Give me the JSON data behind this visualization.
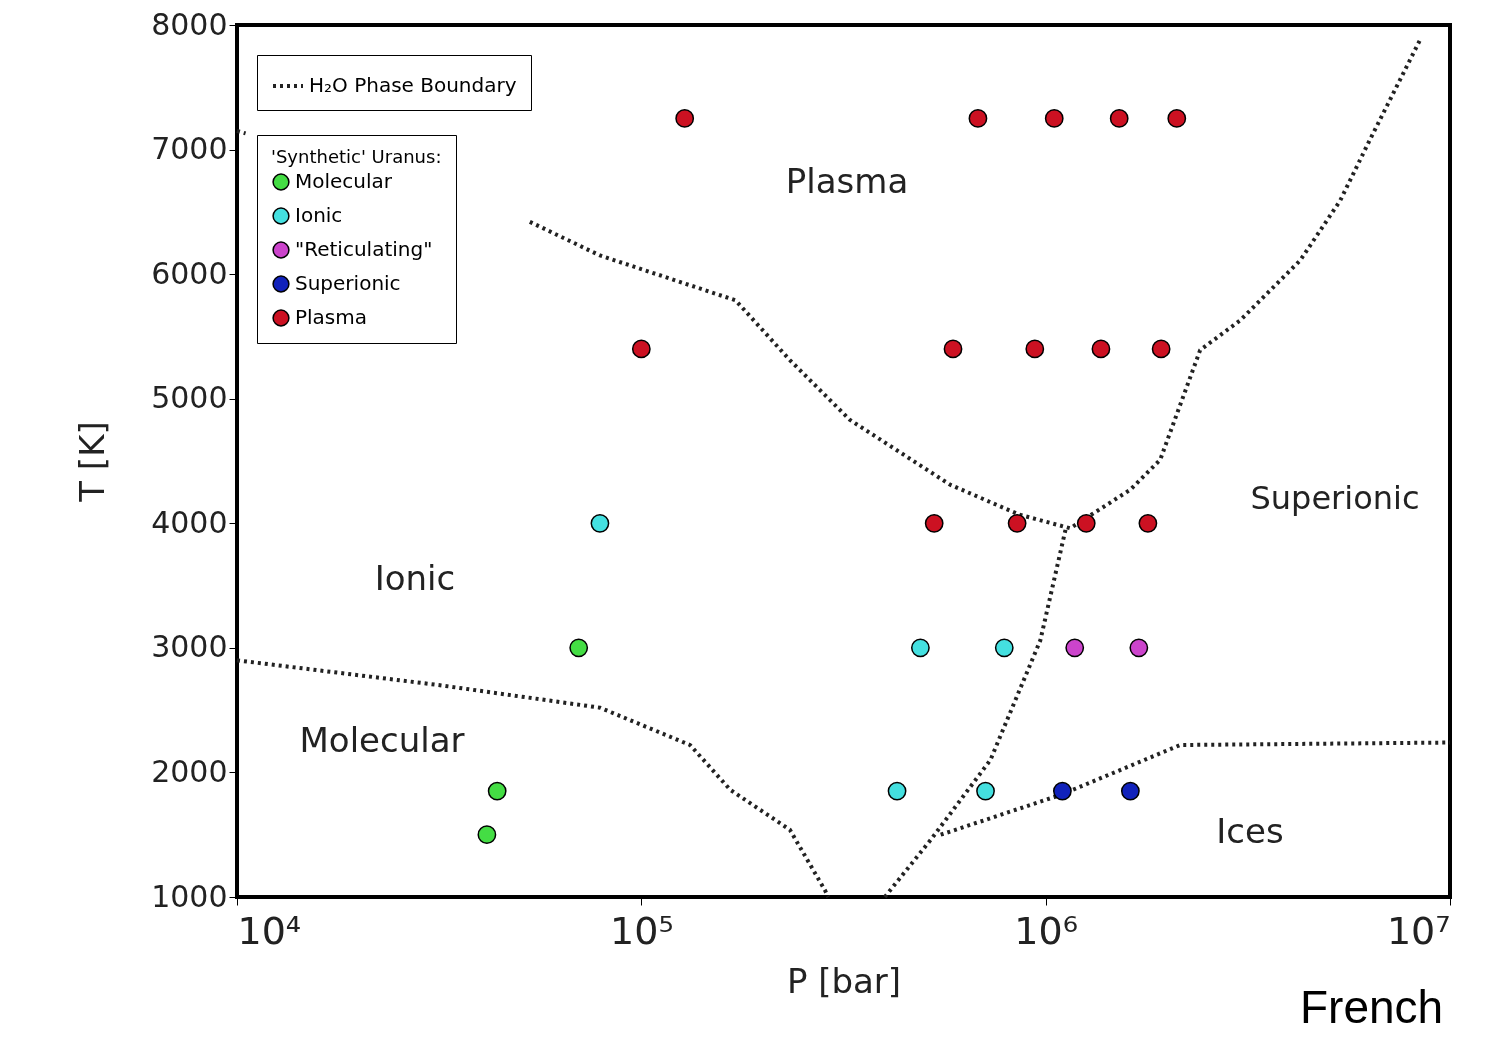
{
  "chart_data": {
    "type": "scatter",
    "xlabel": "P [bar]",
    "ylabel": "T [K]",
    "legend_title": "'Synthetic' Uranus:",
    "log": "x",
    "grid": false,
    "legend": "top left",
    "marker": "circle",
    "xlim": [
      10000,
      10000000
    ],
    "xticks": [
      {
        "value": 10000,
        "label": "10⁴"
      },
      {
        "value": 100000,
        "label": "10⁵"
      },
      {
        "value": 1000000,
        "label": "10⁶"
      },
      {
        "value": 10000000,
        "label": "10⁷"
      }
    ],
    "ylim": [
      1000,
      8000
    ],
    "yticks": [
      1000,
      2000,
      3000,
      4000,
      5000,
      6000,
      7000,
      8000
    ],
    "series": [
      {
        "name": "H₂O Phase Boundary",
        "type": "line",
        "line_style": "dotted",
        "marker": "none",
        "color": "#222222",
        "x": [
          10000,
          31800,
          79000,
          132000,
          166000,
          233000,
          285000,
          290000,
          null,
          10000,
          10500,
          null,
          53000,
          79000,
          171000,
          233000,
          328000,
          580000,
          860000,
          1150000,
          1620000,
          1920000,
          2410000,
          3030000,
          4260000,
          5350000,
          6340000,
          8430000,
          null,
          400000,
          520000,
          730000,
          970000,
          1120000,
          null,
          550000,
          1090000,
          2150000,
          10000000
        ],
        "values": [
          2900,
          2700,
          2520,
          2220,
          1860,
          1540,
          1050,
          1000,
          null,
          7150,
          7130,
          null,
          6420,
          6150,
          5790,
          5310,
          4830,
          4310,
          4070,
          3960,
          4270,
          4510,
          5390,
          5630,
          6110,
          6590,
          7080,
          7880,
          null,
          1000,
          1460,
          2100,
          3060,
          3950,
          null,
          1500,
          1820,
          2220,
          2240
        ]
      },
      {
        "name": "Molecular",
        "color": "#44dd44",
        "x": [
          44000,
          41500,
          70000
        ],
        "values": [
          1850,
          1500,
          3000
        ]
      },
      {
        "name": "Ionic",
        "color": "#44e0e0",
        "x": [
          429000,
          710000,
          490000,
          790000,
          79000
        ],
        "values": [
          1850,
          1850,
          3000,
          3000,
          4000
        ]
      },
      {
        "name": "\"Reticulating\"",
        "color": "#cc44cc",
        "x": [
          1180000,
          1700000
        ],
        "values": [
          3000,
          3000
        ]
      },
      {
        "name": "Superionic",
        "color": "#1122bb",
        "x": [
          1100000,
          1620000
        ],
        "values": [
          1850,
          1850
        ]
      },
      {
        "name": "Plasma",
        "color": "#cc1122",
        "x": [
          530000,
          850000,
          1260000,
          1790000,
          100000,
          590000,
          940000,
          1370000,
          1930000,
          128000,
          680000,
          1050000,
          1520000,
          2110000
        ],
        "values": [
          4000,
          4000,
          4000,
          4000,
          5400,
          5400,
          5400,
          5400,
          5400,
          7250,
          7250,
          7250,
          7250,
          7250
        ]
      }
    ],
    "annotations": [
      "Plasma",
      "Ionic",
      "Molecular",
      "Superionic",
      "Ices",
      "French"
    ]
  }
}
